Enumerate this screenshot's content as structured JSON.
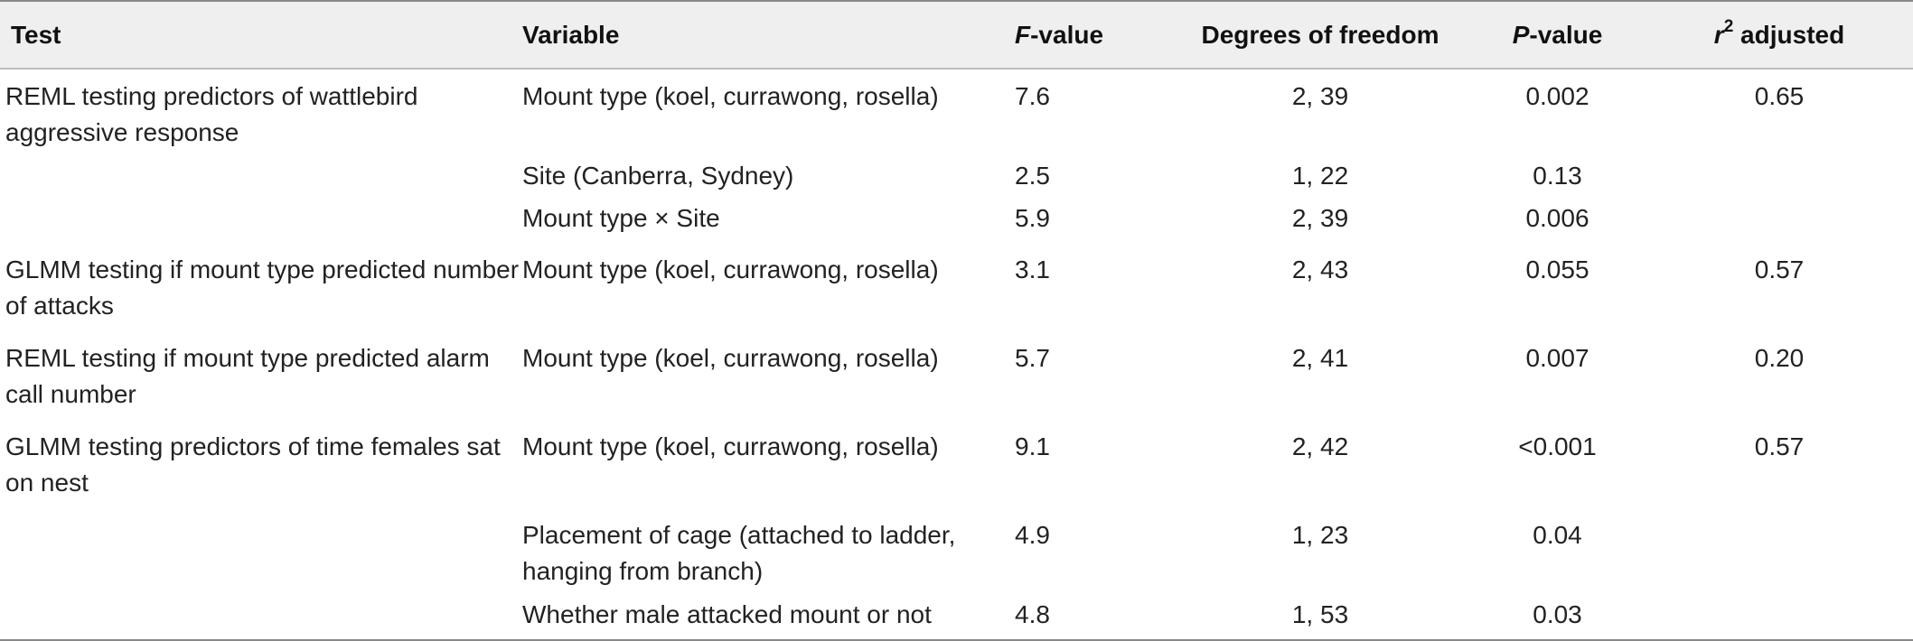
{
  "headers": {
    "test": "Test",
    "variable": "Variable",
    "f_value_italic": "F",
    "f_value_rest": "-value",
    "df": "Degrees of freedom",
    "p_value_italic": "P",
    "p_value_rest": "-value",
    "r2_base": "r",
    "r2_sup": "2",
    "r2_rest": " adjusted"
  },
  "rows": [
    {
      "test": "REML testing predictors of wattlebird aggressive response",
      "variable": "Mount type (koel, currawong, rosella)",
      "f": "7.6",
      "df": "2, 39",
      "p": "0.002",
      "r2": "0.65"
    },
    {
      "test": "",
      "variable": "Site (Canberra, Sydney)",
      "f": "2.5",
      "df": "1, 22",
      "p": "0.13",
      "r2": ""
    },
    {
      "test": "",
      "variable": "Mount type × Site",
      "f": "5.9",
      "df": "2, 39",
      "p": "0.006",
      "r2": ""
    },
    {
      "test": "GLMM testing if mount type predicted number of attacks",
      "variable": "Mount type (koel, currawong, rosella)",
      "f": "3.1",
      "df": "2, 43",
      "p": "0.055",
      "r2": "0.57"
    },
    {
      "test": "REML testing if mount type predicted alarm call number",
      "variable": "Mount type (koel, currawong, rosella)",
      "f": "5.7",
      "df": "2, 41",
      "p": "0.007",
      "r2": "0.20"
    },
    {
      "test": "GLMM testing predictors of time females sat on nest",
      "variable": "Mount type (koel, currawong, rosella)",
      "f": "9.1",
      "df": "2, 42",
      "p": "<0.001",
      "r2": "0.57"
    },
    {
      "test": "",
      "variable": "Placement of cage (attached to ladder, hanging from branch)",
      "f": "4.9",
      "df": "1, 23",
      "p": "0.04",
      "r2": ""
    },
    {
      "test": "",
      "variable": "Whether male attacked mount or not",
      "f": "4.8",
      "df": "1, 53",
      "p": "0.03",
      "r2": ""
    }
  ]
}
